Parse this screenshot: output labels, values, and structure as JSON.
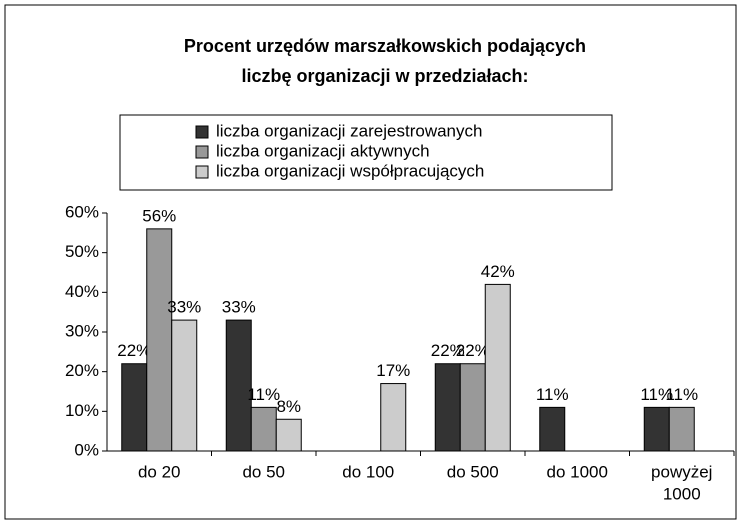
{
  "chart_data": {
    "type": "bar",
    "title": [
      "Procent urzędów marszałkowskich podających",
      "liczbę organizacji w przedziałach:"
    ],
    "categories": [
      [
        "do 20"
      ],
      [
        "do 50"
      ],
      [
        "do 100"
      ],
      [
        "do 500"
      ],
      [
        "do 1000"
      ],
      [
        "powyżej",
        "1000"
      ]
    ],
    "series": [
      {
        "name": "liczba organizacji zarejestrowanych",
        "color": "#333333",
        "values": [
          22,
          33,
          null,
          22,
          11,
          11
        ],
        "value_labels": [
          "22%",
          "33%",
          null,
          "22%",
          "11%",
          "11%"
        ]
      },
      {
        "name": "liczba organizacji aktywnych",
        "color": "#999999",
        "values": [
          56,
          11,
          null,
          22,
          null,
          11
        ],
        "value_labels": [
          "56%",
          "11%",
          null,
          "22%",
          null,
          "11%"
        ]
      },
      {
        "name": "liczba organizacji współpracujących",
        "color": "#cccccc",
        "values": [
          33,
          8,
          17,
          42,
          null,
          null
        ],
        "value_labels": [
          "33%",
          "8%",
          "17%",
          "42%",
          null,
          null
        ]
      }
    ],
    "ylim": [
      0,
      60
    ],
    "yticks": [
      {
        "value": 0,
        "label": "0%"
      },
      {
        "value": 10,
        "label": "10%"
      },
      {
        "value": 20,
        "label": "20%"
      },
      {
        "value": 30,
        "label": "30%"
      },
      {
        "value": 40,
        "label": "40%"
      },
      {
        "value": 50,
        "label": "50%"
      },
      {
        "value": 60,
        "label": "60%"
      }
    ],
    "legend": "top"
  }
}
